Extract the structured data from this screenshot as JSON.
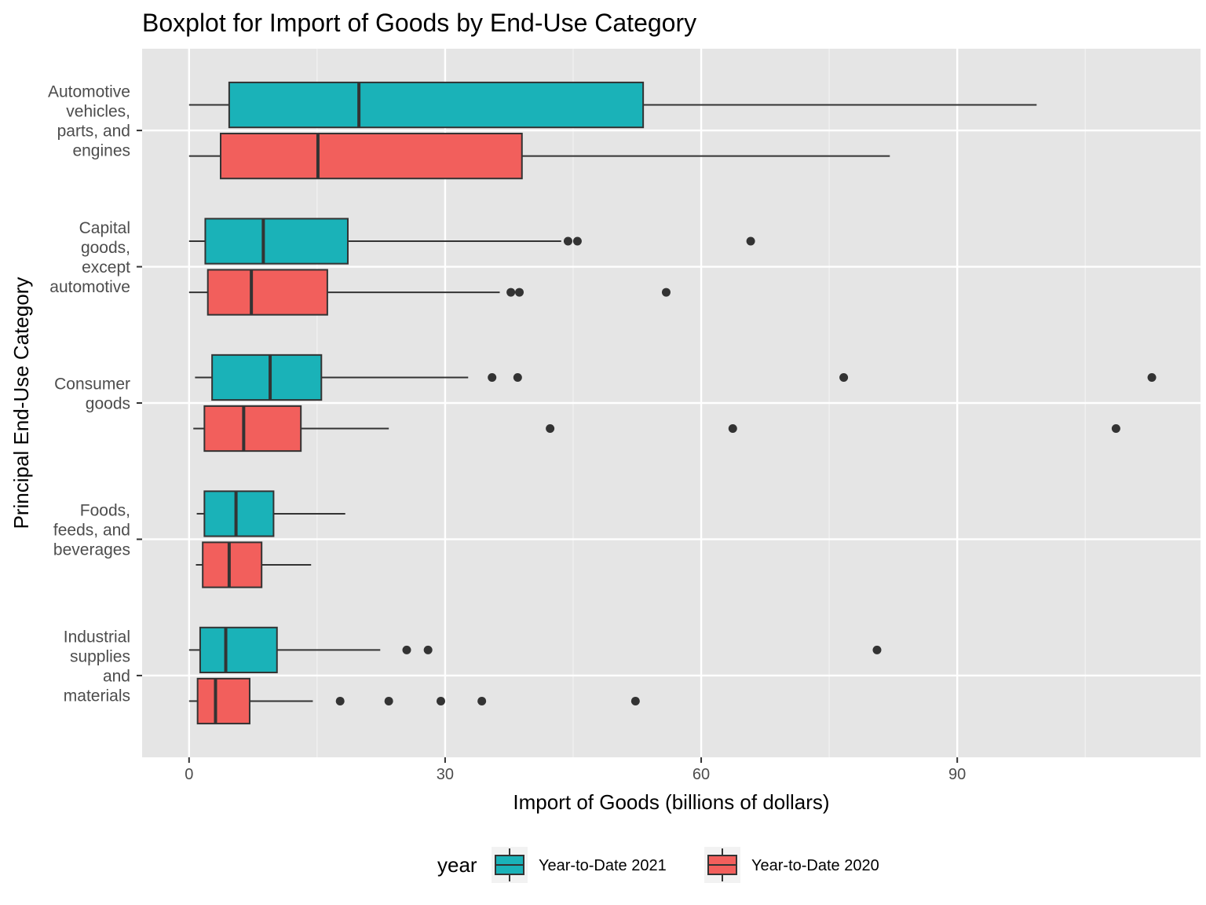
{
  "chart_data": {
    "type": "boxplot",
    "title": "Boxplot for Import of Goods by End-Use Category",
    "xlabel": "Import of Goods (billions of dollars)",
    "ylabel": "Principal End-Use Category",
    "xlim": [
      -5.5,
      118.5
    ],
    "xticks": [
      0,
      30,
      60,
      90
    ],
    "grid": true,
    "orientation": "horizontal",
    "legend": {
      "title": "year",
      "position": "bottom",
      "entries": [
        {
          "name": "Year-to-Date 2021",
          "color": "#1AB2B8"
        },
        {
          "name": "Year-to-Date 2020",
          "color": "#F25F5C"
        }
      ]
    },
    "categories": [
      {
        "lines": [
          "Automotive",
          "vehicles,",
          "parts, and",
          "engines"
        ]
      },
      {
        "lines": [
          "Capital",
          "goods,",
          "except",
          "automotive"
        ]
      },
      {
        "lines": [
          "Consumer",
          "goods"
        ]
      },
      {
        "lines": [
          "Foods,",
          "feeds, and",
          "beverages"
        ]
      },
      {
        "lines": [
          "Industrial",
          "supplies",
          "and",
          "materials"
        ]
      }
    ],
    "series": [
      {
        "name": "Year-to-Date 2021",
        "color": "#1AB2B8",
        "boxes": [
          {
            "whisker_low": 0.0,
            "q1": 4.7,
            "median": 19.9,
            "q3": 53.2,
            "whisker_high": 99.3,
            "outliers": []
          },
          {
            "whisker_low": 0.0,
            "q1": 1.9,
            "median": 8.7,
            "q3": 18.6,
            "whisker_high": 43.6,
            "outliers": [
              44.4,
              45.5,
              65.8
            ]
          },
          {
            "whisker_low": 0.7,
            "q1": 2.7,
            "median": 9.5,
            "q3": 15.5,
            "whisker_high": 32.7,
            "outliers": [
              35.5,
              38.5,
              76.7,
              112.8
            ]
          },
          {
            "whisker_low": 0.9,
            "q1": 1.8,
            "median": 5.5,
            "q3": 9.9,
            "whisker_high": 18.3,
            "outliers": []
          },
          {
            "whisker_low": 0.0,
            "q1": 1.3,
            "median": 4.3,
            "q3": 10.3,
            "whisker_high": 22.4,
            "outliers": [
              25.5,
              28.0,
              80.6
            ]
          }
        ]
      },
      {
        "name": "Year-to-Date 2020",
        "color": "#F25F5C",
        "boxes": [
          {
            "whisker_low": 0.0,
            "q1": 3.7,
            "median": 15.1,
            "q3": 39.0,
            "whisker_high": 82.1,
            "outliers": []
          },
          {
            "whisker_low": 0.0,
            "q1": 2.2,
            "median": 7.3,
            "q3": 16.2,
            "whisker_high": 36.4,
            "outliers": [
              37.7,
              38.7,
              55.9
            ]
          },
          {
            "whisker_low": 0.5,
            "q1": 1.8,
            "median": 6.4,
            "q3": 13.1,
            "whisker_high": 23.4,
            "outliers": [
              42.3,
              63.7,
              108.6
            ]
          },
          {
            "whisker_low": 0.8,
            "q1": 1.6,
            "median": 4.7,
            "q3": 8.5,
            "whisker_high": 14.3,
            "outliers": []
          },
          {
            "whisker_low": 0.0,
            "q1": 1.0,
            "median": 3.1,
            "q3": 7.1,
            "whisker_high": 14.5,
            "outliers": [
              17.7,
              23.4,
              29.5,
              34.3,
              52.3
            ]
          }
        ]
      }
    ]
  }
}
